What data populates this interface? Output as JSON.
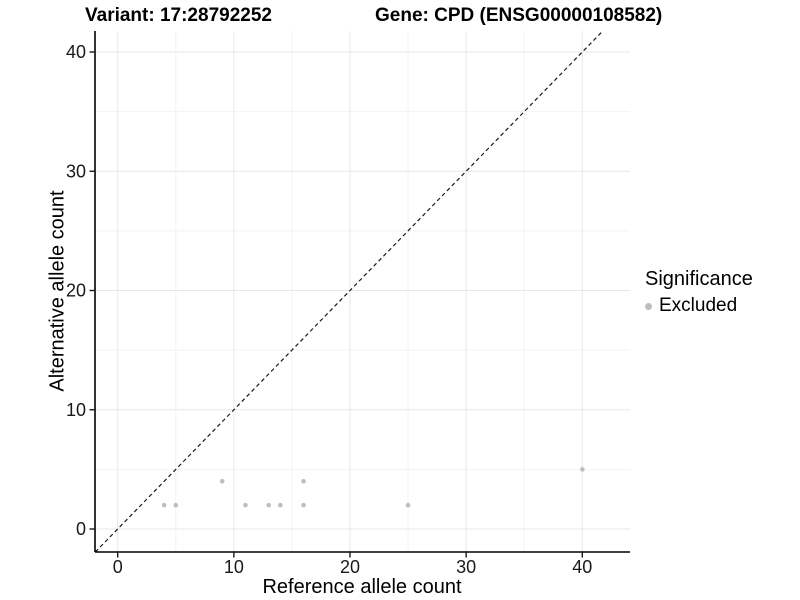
{
  "chart_data": {
    "type": "scatter",
    "title_variant": "Variant: 17:28792252",
    "title_gene": "Gene: CPD (ENSG00000108582)",
    "xlabel": "Reference allele count",
    "ylabel": "Alternative allele count",
    "xlim": [
      -1.95,
      44.11
    ],
    "ylim": [
      -1.93,
      41.76
    ],
    "xticks": [
      0,
      10,
      20,
      30,
      40
    ],
    "yticks": [
      0,
      10,
      20,
      30,
      40
    ],
    "minor_xticks": [
      5,
      15,
      25,
      35
    ],
    "minor_yticks": [
      5,
      15,
      25,
      35
    ],
    "grid": true,
    "grid_major_color": "#e7e7e7",
    "grid_minor_color": "#f2f2f2",
    "axis_color": "#000000",
    "tick_text_color": "#1a1a1a",
    "legend_position": "right",
    "series": [
      {
        "name": "Excluded",
        "color": "#bdbdbd",
        "points": [
          [
            4,
            2
          ],
          [
            5,
            2
          ],
          [
            9,
            4
          ],
          [
            11,
            2
          ],
          [
            13,
            2
          ],
          [
            14,
            2
          ],
          [
            16,
            2
          ],
          [
            16,
            4
          ],
          [
            25,
            2
          ],
          [
            40,
            5
          ]
        ]
      }
    ],
    "reference_line": {
      "type": "identity",
      "style": "dashed",
      "color": "#1a1a1a"
    }
  },
  "legend": {
    "title": "Significance",
    "items": [
      {
        "label": "Excluded",
        "color": "#bdbdbd",
        "marker": "dot"
      }
    ]
  }
}
